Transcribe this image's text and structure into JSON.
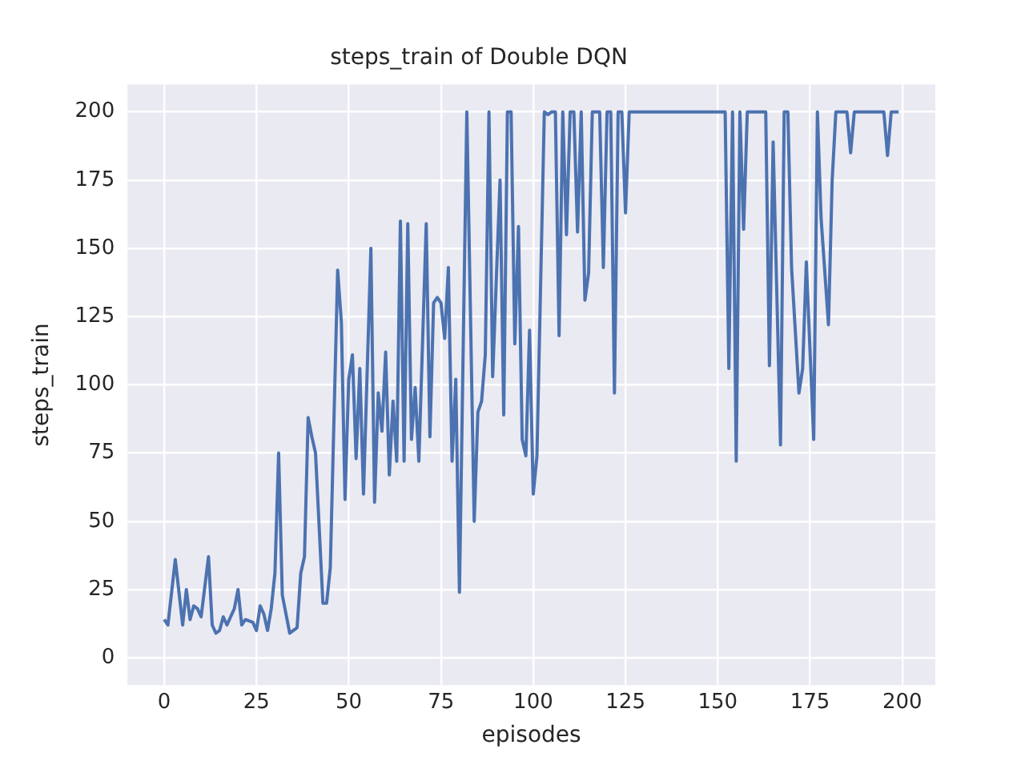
{
  "chart_data": {
    "type": "line",
    "title": "steps_train of Double DQN",
    "xlabel": "episodes",
    "ylabel": "steps_train",
    "xlim": [
      -9.95,
      208.95
    ],
    "xticks": [
      0,
      25,
      50,
      75,
      100,
      125,
      150,
      175,
      200
    ],
    "ylim": [
      -10,
      210
    ],
    "yticks": [
      0,
      25,
      50,
      75,
      100,
      125,
      150,
      175,
      200
    ],
    "grid": true,
    "legend": false,
    "marker": "none",
    "line_style": "solid",
    "series": [
      {
        "color": "#4c72b0",
        "x": [
          0,
          1,
          3,
          5,
          6,
          7,
          8,
          9,
          10,
          12,
          13,
          14,
          15,
          16,
          17,
          18,
          19,
          20,
          21,
          22,
          24,
          25,
          26,
          27,
          28,
          29,
          30,
          31,
          32,
          34,
          36,
          37,
          38,
          39,
          40,
          41,
          43,
          44,
          45,
          47,
          48,
          49,
          50,
          51,
          52,
          53,
          54,
          56,
          57,
          58,
          59,
          60,
          61,
          62,
          63,
          64,
          65,
          66,
          67,
          68,
          69,
          71,
          72,
          73,
          74,
          75,
          76,
          77,
          78,
          79,
          80,
          82,
          84,
          85,
          86,
          87,
          88,
          89,
          91,
          92,
          93,
          94,
          95,
          96,
          97,
          98,
          99,
          100,
          101,
          103,
          104,
          105,
          106,
          107,
          108,
          109,
          110,
          111,
          112,
          113,
          114,
          115,
          116,
          118,
          119,
          120,
          121,
          122,
          123,
          124,
          125,
          126,
          152,
          153,
          154,
          155,
          156,
          157,
          158,
          163,
          164,
          165,
          167,
          168,
          169,
          170,
          172,
          173,
          174,
          176,
          177,
          178,
          180,
          181,
          182,
          185,
          186,
          187,
          195,
          196,
          197,
          199
        ],
        "values": [
          14,
          12,
          36,
          12,
          25,
          14,
          19,
          18,
          15,
          37,
          12,
          9,
          10,
          15,
          12,
          15,
          18,
          25,
          12,
          14,
          13,
          10,
          19,
          16,
          10,
          18,
          31,
          75,
          23,
          9,
          11,
          31,
          37,
          88,
          81,
          75,
          20,
          20,
          33,
          142,
          123,
          58,
          102,
          111,
          73,
          106,
          60,
          150,
          57,
          97,
          83,
          112,
          67,
          94,
          72,
          160,
          72,
          159,
          80,
          99,
          72,
          159,
          81,
          130,
          132,
          130,
          117,
          143,
          72,
          102,
          24,
          200,
          50,
          90,
          94,
          111,
          200,
          103,
          175,
          89,
          200,
          200,
          115,
          158,
          80,
          74,
          120,
          60,
          74,
          200,
          199,
          200,
          200,
          118,
          200,
          155,
          200,
          200,
          156,
          200,
          131,
          141,
          200,
          200,
          143,
          200,
          200,
          97,
          200,
          200,
          163,
          200,
          200,
          106,
          200,
          72,
          200,
          157,
          200,
          200,
          107,
          189,
          78,
          200,
          200,
          143,
          97,
          106,
          145,
          80,
          200,
          161,
          122,
          175,
          200,
          200,
          185,
          200,
          200,
          184,
          200,
          200
        ]
      }
    ]
  }
}
